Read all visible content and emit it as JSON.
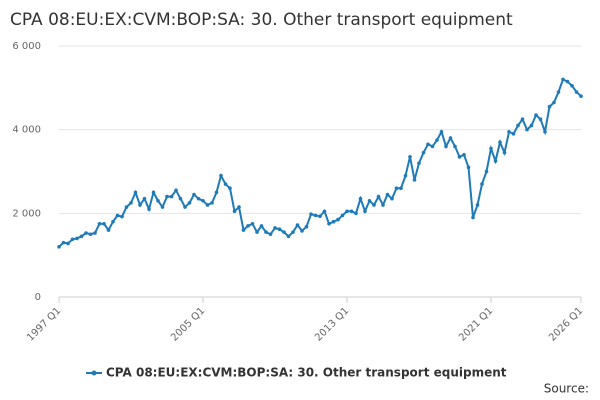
{
  "chart_data": {
    "type": "line",
    "title": "CPA 08:EU:EX:CVM:BOP:SA: 30. Other transport equipment",
    "source": "Source:",
    "categories": [
      "1997 Q1",
      null,
      null,
      null,
      null,
      null,
      null,
      null,
      null,
      null,
      null,
      null,
      null,
      null,
      null,
      null,
      null,
      null,
      null,
      null,
      null,
      null,
      null,
      null,
      null,
      null,
      null,
      null,
      null,
      null,
      null,
      null,
      "2005 Q1",
      null,
      null,
      null,
      null,
      null,
      null,
      null,
      null,
      null,
      null,
      null,
      null,
      null,
      null,
      null,
      null,
      null,
      null,
      null,
      null,
      null,
      null,
      null,
      null,
      null,
      null,
      null,
      null,
      null,
      null,
      null,
      "2013 Q1",
      null,
      null,
      null,
      null,
      null,
      null,
      null,
      null,
      null,
      null,
      null,
      null,
      null,
      null,
      null,
      null,
      null,
      null,
      null,
      null,
      null,
      null,
      null,
      null,
      null,
      null,
      null,
      null,
      null,
      null,
      null,
      "2021 Q1",
      null,
      null,
      null,
      null,
      null,
      null,
      null,
      null,
      null,
      null,
      null,
      null,
      null,
      null,
      null,
      null,
      null,
      null,
      null,
      "2026 Q1"
    ],
    "series": [
      {
        "name": "CPA 08:EU:EX:CVM:BOP:SA: 30. Other transport equipment",
        "color": "#1f7ab8",
        "values": [
          1200,
          1300,
          1280,
          1380,
          1400,
          1450,
          1530,
          1500,
          1530,
          1750,
          1750,
          1600,
          1800,
          1950,
          1920,
          2150,
          2250,
          2500,
          2200,
          2350,
          2100,
          2500,
          2300,
          2150,
          2400,
          2400,
          2550,
          2350,
          2150,
          2250,
          2450,
          2350,
          2300,
          2200,
          2250,
          2500,
          2900,
          2700,
          2600,
          2050,
          2150,
          1600,
          1700,
          1750,
          1550,
          1700,
          1550,
          1500,
          1650,
          1620,
          1550,
          1450,
          1550,
          1720,
          1580,
          1680,
          1980,
          1950,
          1930,
          2050,
          1750,
          1800,
          1850,
          1950,
          2050,
          2050,
          2000,
          2350,
          2050,
          2300,
          2200,
          2400,
          2200,
          2450,
          2350,
          2600,
          2600,
          2900,
          3350,
          2800,
          3200,
          3450,
          3650,
          3600,
          3750,
          3950,
          3600,
          3800,
          3600,
          3350,
          3400,
          3100,
          1900,
          2200,
          2700,
          3000,
          3550,
          3250,
          3700,
          3450,
          3950,
          3900,
          4100,
          4250,
          4000,
          4100,
          4350,
          4250,
          3950,
          4550,
          4650,
          4900,
          5200,
          5150,
          5050,
          4900,
          4800
        ]
      }
    ],
    "ylim": [
      0,
      6000
    ],
    "yticks": [
      0,
      {
        "value": 2000,
        "label": "2 000"
      },
      {
        "value": 4000,
        "label": "4 000"
      },
      {
        "value": 6000,
        "label": "6 000"
      }
    ],
    "grid": true,
    "legend": "bottom"
  }
}
